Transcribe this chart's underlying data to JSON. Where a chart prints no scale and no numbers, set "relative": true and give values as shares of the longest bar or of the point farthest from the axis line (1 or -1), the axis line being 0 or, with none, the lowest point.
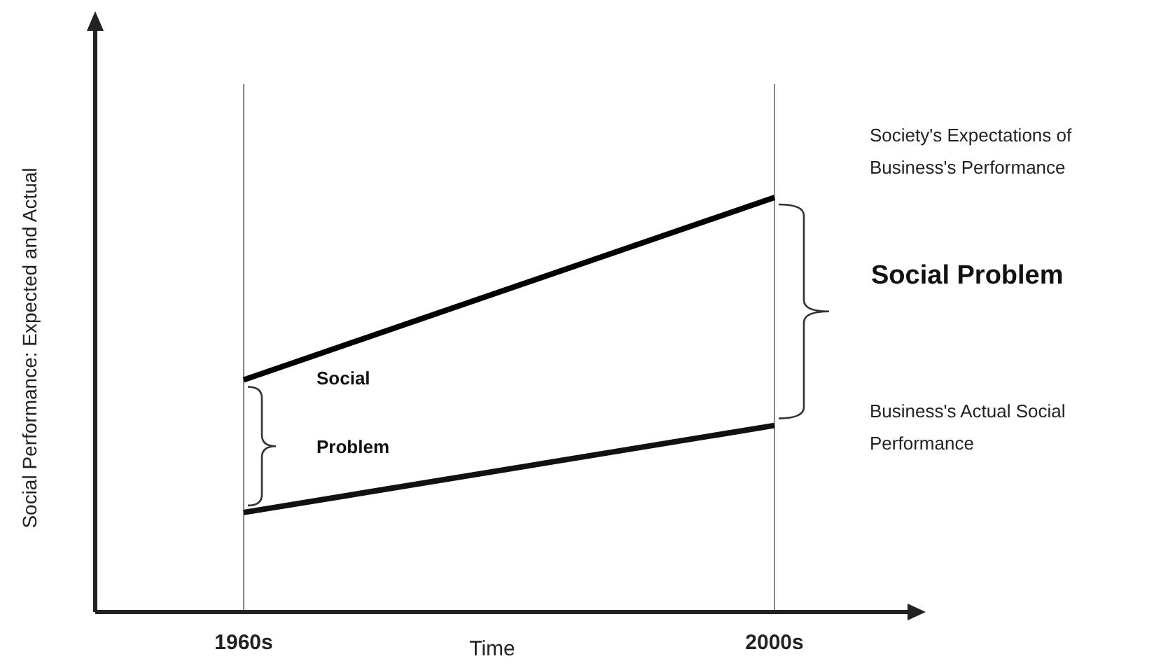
{
  "chart_data": {
    "type": "line",
    "relative": true,
    "xlabel": "Time",
    "ylabel": "Social Performance: Expected and Actual",
    "categories": [
      "1960s",
      "2000s"
    ],
    "grid": "x",
    "tick_labels": "x",
    "legend": false,
    "marker": "none",
    "series": [
      {
        "name": "Society's Expectations of Business's Performance",
        "color": "#000000",
        "values": [
          0.56,
          1
        ]
      },
      {
        "name": "Business's Actual Social Performance",
        "color": "#111111",
        "values": [
          0.24,
          0.45
        ]
      }
    ],
    "annotations": [
      "Social",
      "Problem",
      "Social Problem"
    ]
  }
}
